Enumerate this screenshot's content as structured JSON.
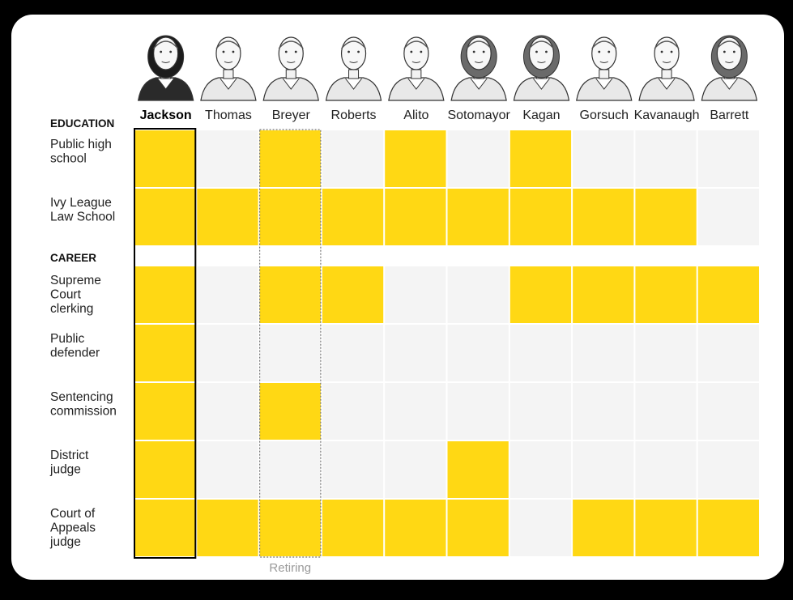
{
  "chart_data": {
    "type": "table",
    "justices": [
      "Jackson",
      "Thomas",
      "Breyer",
      "Roberts",
      "Alito",
      "Sotomayor",
      "Kagan",
      "Gorsuch",
      "Kavanaugh",
      "Barrett"
    ],
    "highlighted_justice": "Jackson",
    "retiring_justice": "Breyer",
    "retiring_label": "Retiring",
    "sections": [
      {
        "label": "EDUCATION",
        "rows": [
          {
            "label_lines": [
              "Public high",
              "school"
            ],
            "values": [
              1,
              0,
              1,
              0,
              1,
              0,
              1,
              0,
              0,
              0
            ]
          },
          {
            "label_lines": [
              "Ivy League",
              "Law School"
            ],
            "values": [
              1,
              1,
              1,
              1,
              1,
              1,
              1,
              1,
              1,
              0
            ]
          }
        ]
      },
      {
        "label": "CAREER",
        "rows": [
          {
            "label_lines": [
              "Supreme",
              "Court",
              "clerking"
            ],
            "values": [
              1,
              0,
              1,
              1,
              0,
              0,
              1,
              1,
              1,
              1
            ]
          },
          {
            "label_lines": [
              "Public",
              "defender"
            ],
            "values": [
              1,
              0,
              0,
              0,
              0,
              0,
              0,
              0,
              0,
              0
            ]
          },
          {
            "label_lines": [
              "Sentencing",
              "commission"
            ],
            "values": [
              1,
              0,
              1,
              0,
              0,
              0,
              0,
              0,
              0,
              0
            ]
          },
          {
            "label_lines": [
              "District",
              "judge"
            ],
            "values": [
              1,
              0,
              0,
              0,
              0,
              1,
              0,
              0,
              0,
              0
            ]
          },
          {
            "label_lines": [
              "Court of",
              "Appeals",
              "judge"
            ],
            "values": [
              1,
              1,
              1,
              1,
              1,
              1,
              0,
              1,
              1,
              1
            ]
          }
        ]
      }
    ],
    "colors": {
      "filled": "#FFD814",
      "empty": "#F4F4F4",
      "highlight_border": "#000000",
      "retiring_border": "#777777",
      "portrait_stroke": "#333333"
    }
  }
}
